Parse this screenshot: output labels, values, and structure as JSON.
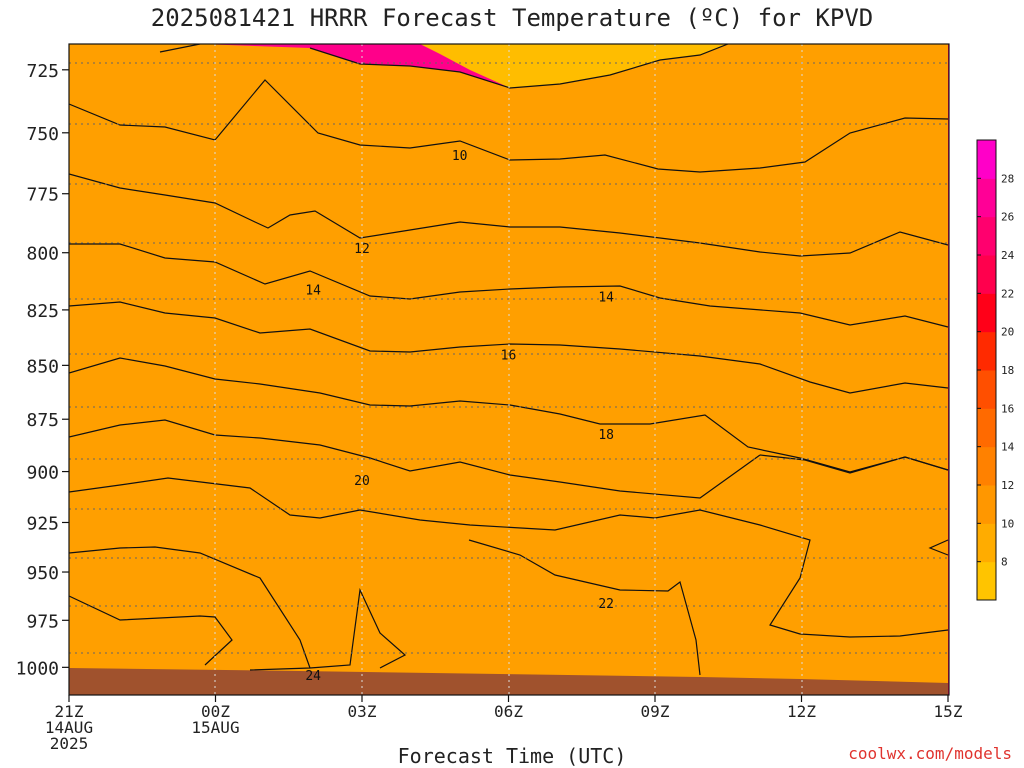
{
  "title": "2025081421 HRRR Forecast Temperature (ºC) for KPVD",
  "credit": "coolwx.com/models",
  "chart_data": {
    "type": "contour",
    "xlabel": "Forecast Time (UTC)",
    "ylabel": "",
    "x_range": [
      "21Z 14AUG 2025",
      "15Z 15AUG 2025"
    ],
    "y_range_hPa": [
      1015,
      715
    ],
    "y_scale": "log-pressure",
    "grid": true,
    "x_ticks": [
      {
        "lines": [
          "21Z",
          "14AUG",
          "2025"
        ]
      },
      {
        "lines": [
          "00Z",
          "15AUG"
        ]
      },
      {
        "lines": [
          "03Z"
        ]
      },
      {
        "lines": [
          "06Z"
        ]
      },
      {
        "lines": [
          "09Z"
        ]
      },
      {
        "lines": [
          "12Z"
        ]
      },
      {
        "lines": [
          "15Z"
        ]
      }
    ],
    "y_ticks": [
      "725",
      "750",
      "775",
      "800",
      "825",
      "850",
      "875",
      "900",
      "925",
      "950",
      "975",
      "1000"
    ],
    "colorbar": {
      "placement": "right",
      "labels": [
        "8",
        "10",
        "12",
        "14",
        "16",
        "18",
        "20",
        "22",
        "24",
        "26",
        "28"
      ],
      "colors": [
        "#ffc400",
        "#ffac00",
        "#ff9700",
        "#ff8100",
        "#ff6a00",
        "#ff4f00",
        "#ff2a00",
        "#ff0018",
        "#ff004d",
        "#ff006e",
        "#ff0096",
        "#ff00c8"
      ]
    },
    "contour_labels": [
      {
        "value": "10",
        "time": "05Z",
        "pressure": 759
      },
      {
        "value": "12",
        "time": "03Z",
        "pressure": 798
      },
      {
        "value": "14",
        "time": "02Z",
        "pressure": 816
      },
      {
        "value": "14",
        "time": "08Z",
        "pressure": 819
      },
      {
        "value": "16",
        "time": "06Z",
        "pressure": 845
      },
      {
        "value": "18",
        "time": "08Z",
        "pressure": 882
      },
      {
        "value": "20",
        "time": "03Z",
        "pressure": 904
      },
      {
        "value": "22",
        "time": "08Z",
        "pressure": 966
      },
      {
        "value": "24",
        "time": "02Z",
        "pressure": 1004
      }
    ]
  }
}
